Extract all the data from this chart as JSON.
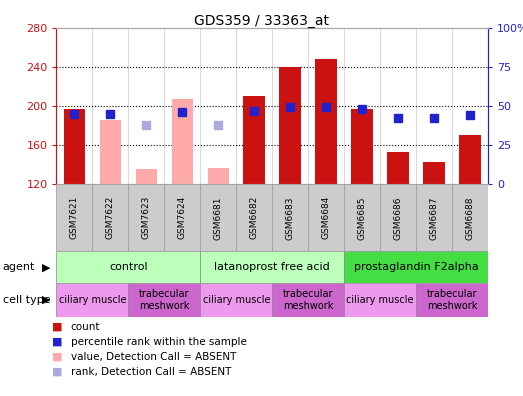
{
  "title": "GDS359 / 33363_at",
  "samples": [
    "GSM7621",
    "GSM7622",
    "GSM7623",
    "GSM7624",
    "GSM6681",
    "GSM6682",
    "GSM6683",
    "GSM6684",
    "GSM6685",
    "GSM6686",
    "GSM6687",
    "GSM6688"
  ],
  "ylim_left": [
    120,
    280
  ],
  "ylim_right": [
    0,
    100
  ],
  "yticks_left": [
    120,
    160,
    200,
    240,
    280
  ],
  "yticks_right": [
    0,
    25,
    50,
    75,
    100
  ],
  "ytick_labels_right": [
    "0",
    "25",
    "50",
    "75",
    "100%"
  ],
  "red_bars": [
    197,
    null,
    null,
    null,
    null,
    210,
    240,
    248,
    197,
    153,
    143,
    170
  ],
  "pink_bars": [
    null,
    186,
    135,
    207,
    137,
    null,
    null,
    null,
    null,
    null,
    null,
    null
  ],
  "blue_pct": [
    45,
    45,
    null,
    46,
    null,
    47,
    49,
    49,
    48,
    42,
    42,
    44
  ],
  "lavender_pct": [
    null,
    null,
    38,
    null,
    38,
    null,
    null,
    null,
    null,
    null,
    null,
    null
  ],
  "bar_width": 0.6,
  "marker_size": 6,
  "red_color": "#cc1111",
  "pink_color": "#ffaaaa",
  "blue_color": "#2222cc",
  "lavender_color": "#aaaadd",
  "agent_groups": [
    {
      "label": "control",
      "start": 0,
      "end": 3,
      "color": "#bbffbb"
    },
    {
      "label": "latanoprost free acid",
      "start": 4,
      "end": 7,
      "color": "#bbffbb"
    },
    {
      "label": "prostaglandin F2alpha",
      "start": 8,
      "end": 11,
      "color": "#44dd44"
    }
  ],
  "cell_type_groups": [
    {
      "label": "ciliary muscle",
      "start": 0,
      "end": 1,
      "color": "#ee99ee"
    },
    {
      "label": "trabecular\nmeshwork",
      "start": 2,
      "end": 3,
      "color": "#cc66cc"
    },
    {
      "label": "ciliary muscle",
      "start": 4,
      "end": 5,
      "color": "#ee99ee"
    },
    {
      "label": "trabecular\nmeshwork",
      "start": 6,
      "end": 7,
      "color": "#cc66cc"
    },
    {
      "label": "ciliary muscle",
      "start": 8,
      "end": 9,
      "color": "#ee99ee"
    },
    {
      "label": "trabecular\nmeshwork",
      "start": 10,
      "end": 11,
      "color": "#cc66cc"
    }
  ]
}
